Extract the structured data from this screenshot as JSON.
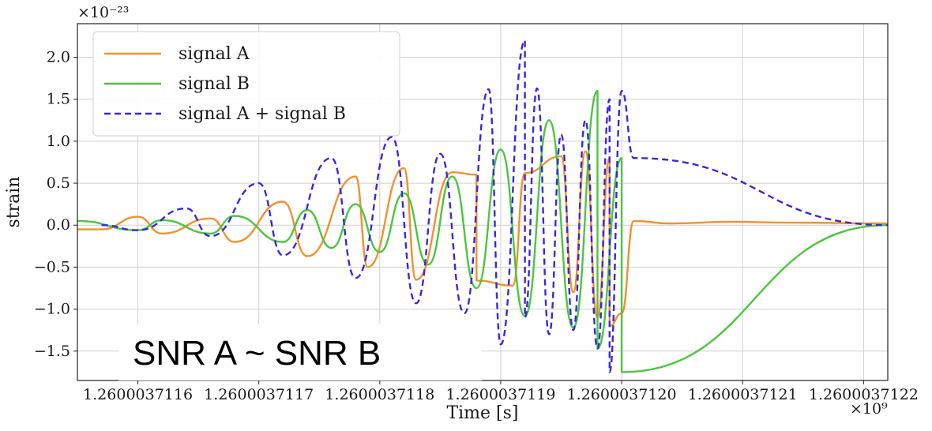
{
  "chart_data": {
    "type": "line",
    "xlabel": "Time [s]",
    "ylabel": "strain",
    "y_scale_label": "×10⁻²³",
    "x_scale_label": "×10⁹",
    "xlim": [
      1.26000371155,
      1.26000371222
    ],
    "ylim": [
      -1.85,
      2.4
    ],
    "x_ticks": [
      1.2600037116,
      1.2600037117,
      1.2600037118,
      1.2600037119,
      1.260003712,
      1.2600037121,
      1.2600037122
    ],
    "x_tick_labels": [
      "1.2600037116",
      "1.2600037117",
      "1.2600037118",
      "1.2600037119",
      "1.2600037120",
      "1.2600037121",
      "1.2600037122"
    ],
    "y_ticks": [
      -1.5,
      -1.0,
      -0.5,
      0.0,
      0.5,
      1.0,
      1.5,
      2.0
    ],
    "y_tick_labels": [
      "−1.5",
      "−1.0",
      "−0.5",
      "0.0",
      "0.5",
      "1.0",
      "1.5",
      "2.0"
    ],
    "grid": true,
    "legend_position": "top-left",
    "annotation": "SNR A ~ SNR B",
    "series": [
      {
        "name": "signal A",
        "color": "#f0922e",
        "style": "solid",
        "points": [
          [
            1.26000371155,
            -0.05
          ],
          [
            1.2600037116,
            0.1
          ],
          [
            1.26000371166,
            0.08
          ],
          [
            1.26000371172,
            0.28
          ],
          [
            1.26000371178,
            0.58
          ],
          [
            1.26000371182,
            0.68
          ],
          [
            1.26000371186,
            0.63
          ],
          [
            1.26000371188,
            0.6
          ],
          [
            1.26000371192,
            0.62
          ],
          [
            1.26000371195,
            0.82
          ],
          [
            1.26000371197,
            0.88
          ],
          [
            1.26000371199,
            0.8
          ],
          [
            1.26000371201,
            0.05
          ],
          [
            1.26000371204,
            0.02
          ],
          [
            1.26000371209,
            0.04
          ],
          [
            1.26000371214,
            0.03
          ],
          [
            1.26000371222,
            0.02
          ]
        ],
        "troughs": [
          [
            1.26000371157,
            -0.05
          ],
          [
            1.26000371162,
            -0.1
          ],
          [
            1.26000371168,
            -0.2
          ],
          [
            1.26000371174,
            -0.37
          ],
          [
            1.26000371179,
            -0.5
          ],
          [
            1.26000371183,
            -0.65
          ],
          [
            1.26000371188,
            -0.66
          ],
          [
            1.26000371191,
            -0.72
          ],
          [
            1.26000371196,
            -0.8
          ],
          [
            1.26000371198,
            -1.1
          ],
          [
            1.26000371199,
            -1.2
          ],
          [
            1.260003712,
            -1.05
          ]
        ]
      },
      {
        "name": "signal B",
        "color": "#4cc63e",
        "style": "solid",
        "points": [
          [
            1.26000371155,
            0.05
          ],
          [
            1.26000371162,
            0.06
          ],
          [
            1.26000371168,
            0.11
          ],
          [
            1.26000371174,
            0.18
          ],
          [
            1.26000371178,
            0.25
          ],
          [
            1.26000371182,
            0.38
          ],
          [
            1.26000371186,
            0.58
          ],
          [
            1.2600037119,
            0.9
          ],
          [
            1.26000371194,
            1.25
          ],
          [
            1.26000371198,
            1.6
          ],
          [
            1.260003712,
            0.8
          ],
          [
            1.26000371222,
            0.0
          ]
        ],
        "troughs": [
          [
            1.2600037116,
            -0.06
          ],
          [
            1.26000371166,
            -0.1
          ],
          [
            1.26000371172,
            -0.2
          ],
          [
            1.26000371176,
            -0.27
          ],
          [
            1.2600037118,
            -0.32
          ],
          [
            1.26000371184,
            -0.47
          ],
          [
            1.26000371188,
            -0.75
          ],
          [
            1.26000371192,
            -1.08
          ],
          [
            1.26000371196,
            -1.22
          ],
          [
            1.26000371198,
            -1.47
          ],
          [
            1.260003712,
            -1.75
          ]
        ]
      },
      {
        "name": "signal A + signal B",
        "color": "#3a28d8",
        "style": "dashed",
        "points": [
          [
            1.26000371157,
            0.0
          ],
          [
            1.26000371164,
            0.2
          ],
          [
            1.2600037117,
            0.5
          ],
          [
            1.26000371176,
            0.8
          ],
          [
            1.26000371181,
            1.05
          ],
          [
            1.26000371185,
            0.85
          ],
          [
            1.26000371189,
            1.62
          ],
          [
            1.26000371192,
            2.2
          ],
          [
            1.26000371193,
            1.63
          ],
          [
            1.26000371195,
            1.08
          ],
          [
            1.26000371197,
            1.25
          ],
          [
            1.26000371199,
            1.5
          ],
          [
            1.260003712,
            1.6
          ],
          [
            1.26000371201,
            0.8
          ],
          [
            1.26000371222,
            0.0
          ]
        ],
        "troughs": [
          [
            1.2600037116,
            -0.06
          ],
          [
            1.26000371166,
            -0.13
          ],
          [
            1.26000371172,
            -0.36
          ],
          [
            1.26000371178,
            -0.63
          ],
          [
            1.26000371183,
            -0.93
          ],
          [
            1.26000371187,
            -1.05
          ],
          [
            1.2600037119,
            -1.42
          ],
          [
            1.26000371192,
            -1.1
          ],
          [
            1.26000371194,
            -1.3
          ],
          [
            1.26000371196,
            -1.25
          ],
          [
            1.26000371198,
            -1.47
          ],
          [
            1.26000371199,
            -1.75
          ]
        ]
      }
    ]
  }
}
